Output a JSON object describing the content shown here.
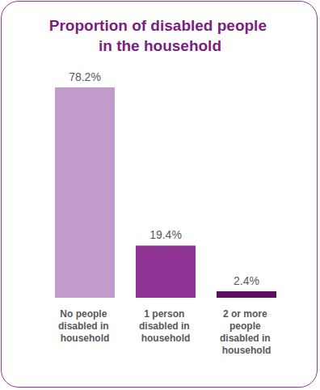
{
  "chart_data": {
    "type": "bar",
    "title": "Proportion of disabled people in the household",
    "categories": [
      "No people disabled in household",
      "1 person disabled in household",
      "2 or more people disabled in household"
    ],
    "values": [
      78.2,
      19.4,
      2.4
    ],
    "value_labels": [
      "78.2%",
      "19.4%",
      "2.4%"
    ],
    "colors": [
      "#c39bca",
      "#8e3394",
      "#5c0e60"
    ],
    "ylim": [
      0,
      80
    ],
    "data_labels": true,
    "tick_labels": "x",
    "grid": false
  }
}
